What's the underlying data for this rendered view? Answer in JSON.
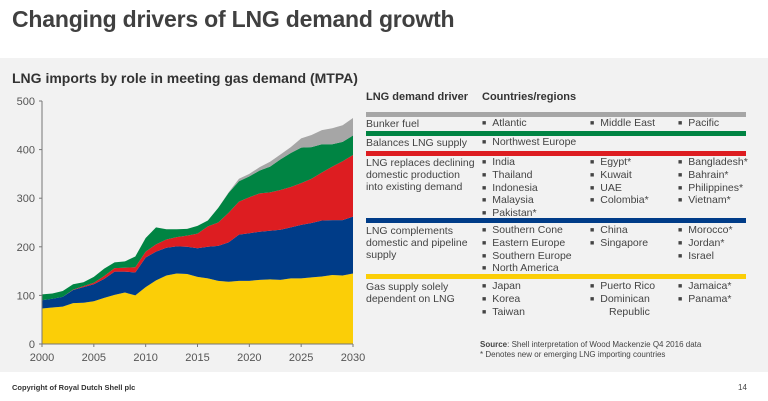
{
  "title": "Changing drivers of LNG demand growth",
  "chart_data": {
    "type": "area",
    "stacked": true,
    "title": "LNG imports by role in meeting gas demand (MTPA)",
    "x": [
      2000,
      2001,
      2002,
      2003,
      2004,
      2005,
      2006,
      2007,
      2008,
      2009,
      2010,
      2011,
      2012,
      2013,
      2014,
      2015,
      2016,
      2017,
      2018,
      2019,
      2020,
      2021,
      2022,
      2023,
      2024,
      2025,
      2026,
      2027,
      2028,
      2029,
      2030
    ],
    "xticks": [
      "2000",
      "2005",
      "2010",
      "2015",
      "2020",
      "2025",
      "2030"
    ],
    "yticks": [
      "0",
      "100",
      "200",
      "300",
      "400",
      "500"
    ],
    "xlim": [
      2000,
      2030
    ],
    "ylim": [
      0,
      500
    ],
    "grid": false,
    "series": [
      {
        "name": "Gas supply solely dependent on LNG",
        "color": "#fbce07",
        "values": [
          73,
          75,
          77,
          84,
          85,
          88,
          95,
          101,
          106,
          100,
          117,
          131,
          141,
          145,
          144,
          138,
          135,
          130,
          128,
          130,
          130,
          132,
          133,
          132,
          135,
          135,
          137,
          139,
          142,
          141,
          145
        ]
      },
      {
        "name": "LNG complements domestic and pipeline supply",
        "color": "#003c88",
        "values": [
          17,
          18,
          20,
          27,
          32,
          35,
          39,
          48,
          43,
          47,
          61,
          59,
          57,
          56,
          56,
          59,
          65,
          72,
          81,
          95,
          98,
          99,
          100,
          103,
          105,
          110,
          112,
          115,
          113,
          114,
          117
        ]
      },
      {
        "name": "LNG replaces declining domestic production into existing demand",
        "color": "#dd1d21",
        "values": [
          0,
          0,
          0,
          1,
          2,
          3,
          6,
          7,
          8,
          11,
          12,
          15,
          17,
          19,
          23,
          30,
          42,
          48,
          61,
          68,
          74,
          79,
          79,
          82,
          83,
          86,
          91,
          99,
          110,
          121,
          127
        ]
      },
      {
        "name": "Balances LNG supply",
        "color": "#008443",
        "values": [
          12,
          11,
          12,
          11,
          8,
          12,
          15,
          12,
          13,
          22,
          28,
          35,
          21,
          16,
          14,
          16,
          12,
          30,
          41,
          42,
          43,
          47,
          53,
          63,
          70,
          73,
          65,
          58,
          46,
          40,
          40
        ]
      },
      {
        "name": "Bunker fuel",
        "color": "#a6a6a6",
        "values": [
          0,
          0,
          0,
          0,
          0,
          0,
          0,
          0,
          0,
          0,
          0,
          0,
          0,
          0,
          0,
          0,
          0,
          0,
          1,
          5,
          5,
          7,
          10,
          10,
          12,
          19,
          25,
          29,
          33,
          34,
          36
        ]
      }
    ]
  },
  "table": {
    "header_driver": "LNG demand driver",
    "header_countries": "Countries/regions",
    "rows": [
      {
        "color": "#a6a6a6",
        "driver": "Bunker fuel",
        "col1": [
          "Atlantic"
        ],
        "col2": [
          "Middle East"
        ],
        "col3": [
          "Pacific"
        ]
      },
      {
        "color": "#008443",
        "driver": "Balances LNG supply",
        "col1": [
          "Northwest Europe"
        ],
        "col2": [],
        "col3": []
      },
      {
        "color": "#dd1d21",
        "driver": "LNG replaces declining domestic production into existing demand",
        "col1": [
          "India",
          "Thailand",
          "Indonesia",
          "Malaysia",
          "Pakistan*"
        ],
        "col2": [
          "Egypt*",
          "Kuwait",
          "UAE",
          "Colombia*"
        ],
        "col3": [
          "Bangladesh*",
          "Bahrain*",
          "Philippines*",
          "Vietnam*"
        ]
      },
      {
        "color": "#003c88",
        "driver": "LNG complements domestic and pipeline supply",
        "col1": [
          "Southern Cone",
          "Eastern Europe",
          "Southern Europe",
          "North America"
        ],
        "col2": [
          "China",
          "Singapore"
        ],
        "col3": [
          "Morocco*",
          "Jordan*",
          "Israel"
        ]
      },
      {
        "color": "#fbce07",
        "driver": "Gas supply solely dependent on LNG",
        "col1": [
          "Japan",
          "Korea",
          "Taiwan"
        ],
        "col2": [
          "Puerto Rico",
          "Dominican Republic"
        ],
        "col3": [
          "Jamaica*",
          "Panama*"
        ]
      }
    ]
  },
  "source_label": "Source",
  "source_text": ": Shell interpretation of Wood Mackenzie Q4 2016 data",
  "footnote": "* Denotes new or emerging LNG importing countries",
  "copyright": "Copyright of Royal Dutch Shell plc",
  "page_number": "14"
}
